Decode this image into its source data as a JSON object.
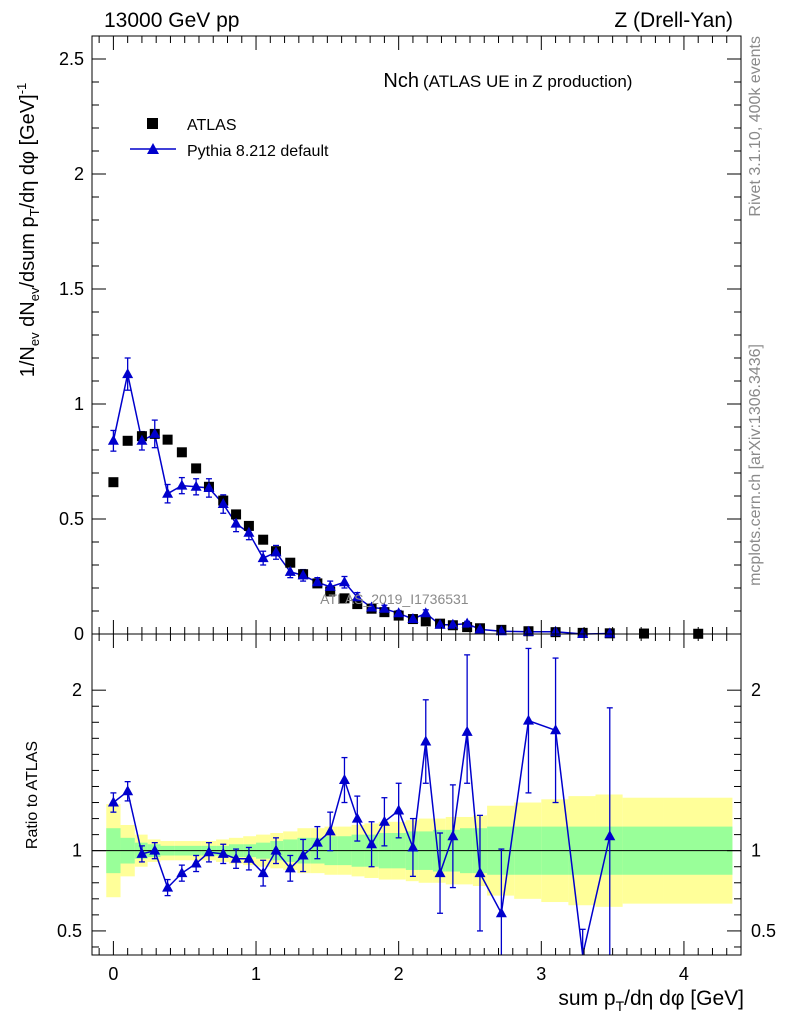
{
  "header": {
    "left": "13000 GeV pp",
    "right": "Z (Drell-Yan)"
  },
  "side_labels": {
    "rivet": "Rivet 3.1.10,  400k events",
    "mcplots": "mcplots.cern.ch [arXiv:1306.3436]"
  },
  "chart_data": [
    {
      "type": "scatter",
      "panel": "main",
      "title": "Nch",
      "subtitle": "(ATLAS UE in Z production)",
      "analysis_label": "ATLAS_2019_I1736531",
      "ylabel": "1/N_ev dN_ev/dsum p_T/dη dφ [GeV]^-1",
      "xlabel": "sum p_T/dη dφ [GeV]",
      "xlim": [
        -0.15,
        4.4
      ],
      "ylim": [
        0,
        2.6
      ],
      "x_ticks": [
        "0",
        "1",
        "2",
        "3",
        "4"
      ],
      "y_ticks": [
        "0",
        "0.5",
        "1",
        "1.5",
        "2",
        "2.5"
      ],
      "legend_position": "top-left",
      "series": [
        {
          "name": "ATLAS",
          "marker": "square",
          "color": "#000000",
          "x": [
            0.0,
            0.1,
            0.2,
            0.29,
            0.38,
            0.48,
            0.58,
            0.67,
            0.77,
            0.86,
            0.95,
            1.05,
            1.14,
            1.24,
            1.33,
            1.43,
            1.52,
            1.62,
            1.71,
            1.81,
            1.9,
            2.0,
            2.1,
            2.19,
            2.29,
            2.38,
            2.48,
            2.57,
            2.72,
            2.91,
            3.1,
            3.29,
            3.48,
            3.72,
            4.1
          ],
          "values": [
            0.66,
            0.84,
            0.86,
            0.87,
            0.845,
            0.79,
            0.72,
            0.64,
            0.58,
            0.52,
            0.47,
            0.41,
            0.36,
            0.31,
            0.26,
            0.22,
            0.185,
            0.155,
            0.13,
            0.11,
            0.095,
            0.08,
            0.065,
            0.055,
            0.045,
            0.038,
            0.03,
            0.025,
            0.018,
            0.012,
            0.008,
            0.005,
            0.003,
            0.002,
            0.001
          ]
        },
        {
          "name": "Pythia 8.212 default",
          "marker": "triangle",
          "color": "#0000cc",
          "x": [
            0.0,
            0.1,
            0.2,
            0.29,
            0.38,
            0.48,
            0.58,
            0.67,
            0.77,
            0.86,
            0.95,
            1.05,
            1.14,
            1.24,
            1.33,
            1.43,
            1.52,
            1.62,
            1.71,
            1.81,
            1.9,
            2.0,
            2.1,
            2.19,
            2.29,
            2.38,
            2.48,
            2.57,
            2.72,
            2.91,
            3.1,
            3.29,
            3.48
          ],
          "values": [
            0.84,
            1.13,
            0.84,
            0.87,
            0.61,
            0.645,
            0.64,
            0.635,
            0.565,
            0.48,
            0.44,
            0.33,
            0.355,
            0.27,
            0.255,
            0.225,
            0.205,
            0.225,
            0.16,
            0.115,
            0.11,
            0.09,
            0.065,
            0.09,
            0.04,
            0.04,
            0.045,
            0.02,
            0.012,
            0.01,
            0.01,
            0.0,
            0.002
          ],
          "errors": [
            0.045,
            0.07,
            0.04,
            0.06,
            0.04,
            0.035,
            0.035,
            0.04,
            0.04,
            0.035,
            0.03,
            0.03,
            0.03,
            0.025,
            0.025,
            0.02,
            0.025,
            0.025,
            0.02,
            0.015,
            0.015,
            0.012,
            0.01,
            0.015,
            0.01,
            0.01,
            0.01,
            0.008,
            0.006,
            0.005,
            0.005,
            0.003,
            0.003
          ]
        }
      ]
    },
    {
      "type": "line",
      "panel": "ratio",
      "ylabel": "Ratio to ATLAS",
      "ylim": [
        0.35,
        2.35
      ],
      "y_ticks": [
        "0.5",
        "1",
        "2"
      ],
      "reference_line": 1,
      "bands": {
        "x_edges": [
          -0.05,
          0.05,
          0.15,
          0.24,
          0.33,
          0.43,
          0.53,
          0.62,
          0.72,
          0.81,
          0.91,
          1.0,
          1.1,
          1.19,
          1.29,
          1.38,
          1.48,
          1.57,
          1.67,
          1.76,
          1.86,
          1.95,
          2.05,
          2.14,
          2.24,
          2.33,
          2.43,
          2.52,
          2.62,
          2.81,
          3.0,
          3.19,
          3.38,
          3.57,
          3.86,
          4.34
        ],
        "green_low": [
          0.86,
          0.92,
          0.95,
          0.96,
          0.97,
          0.97,
          0.97,
          0.97,
          0.97,
          0.96,
          0.96,
          0.95,
          0.94,
          0.93,
          0.92,
          0.92,
          0.91,
          0.91,
          0.9,
          0.9,
          0.89,
          0.89,
          0.88,
          0.88,
          0.87,
          0.87,
          0.86,
          0.86,
          0.85,
          0.85,
          0.85,
          0.85,
          0.85,
          0.85,
          0.85
        ],
        "green_high": [
          1.14,
          1.08,
          1.05,
          1.04,
          1.03,
          1.03,
          1.03,
          1.03,
          1.03,
          1.04,
          1.04,
          1.05,
          1.06,
          1.07,
          1.08,
          1.08,
          1.09,
          1.09,
          1.1,
          1.1,
          1.11,
          1.11,
          1.12,
          1.12,
          1.13,
          1.13,
          1.14,
          1.14,
          1.15,
          1.15,
          1.15,
          1.15,
          1.15,
          1.15,
          1.15
        ],
        "yellow_low": [
          0.71,
          0.84,
          0.9,
          0.93,
          0.94,
          0.94,
          0.94,
          0.94,
          0.93,
          0.92,
          0.91,
          0.9,
          0.89,
          0.88,
          0.86,
          0.86,
          0.85,
          0.85,
          0.84,
          0.83,
          0.82,
          0.82,
          0.81,
          0.8,
          0.8,
          0.79,
          0.79,
          0.78,
          0.72,
          0.7,
          0.68,
          0.66,
          0.65,
          0.67,
          0.67
        ],
        "yellow_high": [
          1.29,
          1.16,
          1.1,
          1.07,
          1.06,
          1.06,
          1.06,
          1.06,
          1.07,
          1.08,
          1.09,
          1.1,
          1.11,
          1.12,
          1.14,
          1.14,
          1.15,
          1.15,
          1.16,
          1.17,
          1.18,
          1.18,
          1.19,
          1.2,
          1.2,
          1.21,
          1.21,
          1.22,
          1.28,
          1.3,
          1.32,
          1.34,
          1.35,
          1.33,
          1.33
        ]
      },
      "series": [
        {
          "name": "Pythia 8.212 default / ATLAS",
          "color": "#0000cc",
          "x": [
            0.0,
            0.1,
            0.2,
            0.29,
            0.38,
            0.48,
            0.58,
            0.67,
            0.77,
            0.86,
            0.95,
            1.05,
            1.14,
            1.24,
            1.33,
            1.43,
            1.52,
            1.62,
            1.71,
            1.81,
            1.9,
            2.0,
            2.1,
            2.19,
            2.29,
            2.38,
            2.48,
            2.57,
            2.72,
            2.91,
            3.1,
            3.29,
            3.48
          ],
          "values": [
            1.3,
            1.37,
            0.98,
            1.0,
            0.77,
            0.86,
            0.92,
            0.99,
            0.98,
            0.95,
            0.95,
            0.86,
            1.0,
            0.89,
            0.97,
            1.05,
            1.12,
            1.44,
            1.2,
            1.04,
            1.18,
            1.25,
            1.02,
            1.68,
            0.86,
            1.09,
            1.74,
            0.86,
            0.61,
            1.81,
            1.75,
            0.31,
            1.09
          ],
          "err_low": [
            0.06,
            0.06,
            0.05,
            0.05,
            0.05,
            0.05,
            0.05,
            0.06,
            0.06,
            0.06,
            0.07,
            0.08,
            0.08,
            0.08,
            0.1,
            0.1,
            0.12,
            0.14,
            0.14,
            0.14,
            0.15,
            0.17,
            0.18,
            0.26,
            0.25,
            0.32,
            0.32,
            0.36,
            0.4,
            0.45,
            0.45,
            0.2,
            0.8
          ],
          "err_high": [
            0.06,
            0.06,
            0.05,
            0.05,
            0.05,
            0.05,
            0.05,
            0.06,
            0.06,
            0.06,
            0.07,
            0.08,
            0.08,
            0.08,
            0.1,
            0.1,
            0.12,
            0.14,
            0.14,
            0.14,
            0.15,
            0.17,
            0.18,
            0.26,
            0.25,
            0.32,
            0.48,
            0.36,
            0.4,
            0.45,
            0.45,
            0.2,
            0.8
          ]
        }
      ]
    }
  ]
}
